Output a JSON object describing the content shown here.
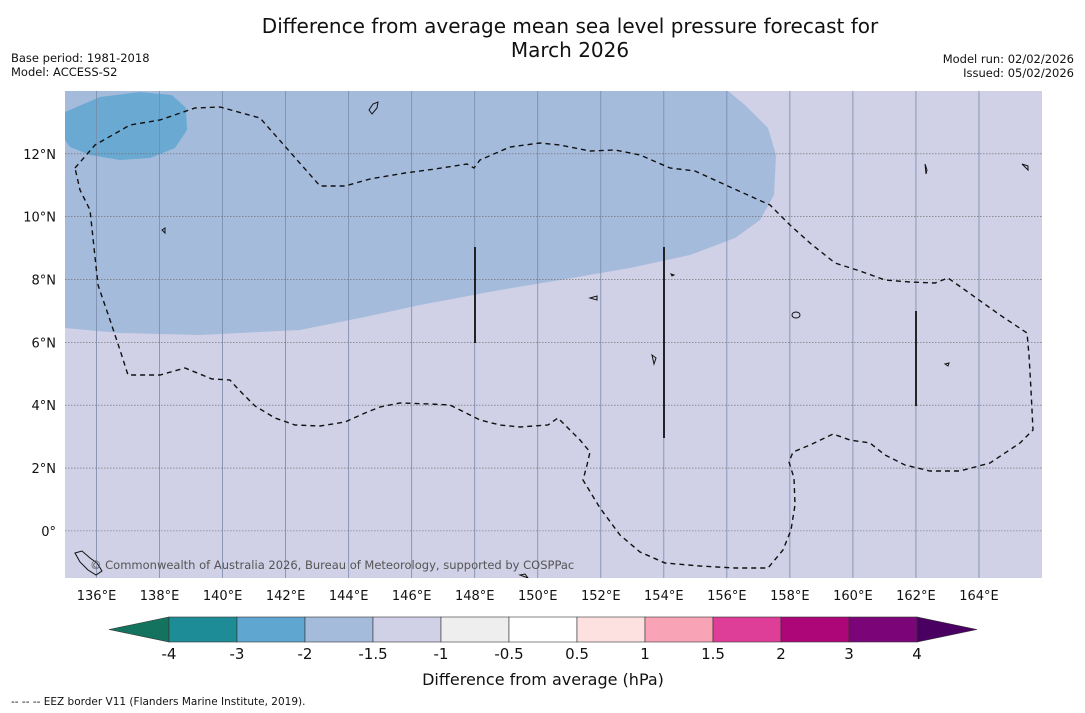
{
  "header": {
    "title_line1": "Difference from average mean sea level pressure forecast for",
    "title_line2": "March 2026",
    "base_period": "Base period: 1981-2018",
    "model": "Model: ACCESS-S2",
    "model_run": "Model run: 02/02/2026",
    "issued": "Issued: 05/02/2026"
  },
  "map": {
    "lon_ticks": [
      "136°E",
      "138°E",
      "140°E",
      "142°E",
      "144°E",
      "146°E",
      "148°E",
      "150°E",
      "152°E",
      "154°E",
      "156°E",
      "158°E",
      "160°E",
      "162°E",
      "164°E"
    ],
    "lat_ticks": [
      "12°N",
      "10°N",
      "8°N",
      "6°N",
      "4°N",
      "2°N",
      "0°"
    ],
    "lon_values": [
      136,
      138,
      140,
      142,
      144,
      146,
      148,
      150,
      152,
      154,
      156,
      158,
      160,
      162,
      164
    ],
    "lat_values": [
      12,
      10,
      8,
      6,
      4,
      2,
      0
    ],
    "copyright": "© Commonwealth of Australia 2026, Bureau of Meteorology, supported by COSPPac",
    "extent": {
      "lon_min": 135.0,
      "lon_max": 166.0,
      "lat_min": -1.5,
      "lat_max": 14.0
    }
  },
  "colorbar": {
    "tick_labels": [
      "-4",
      "-3",
      "-2",
      "-1.5",
      "-1",
      "-0.5",
      "0.5",
      "1",
      "1.5",
      "2",
      "3",
      "4"
    ],
    "colors": [
      "#1e8c96",
      "#5fa6d0",
      "#a5bbdc",
      "#d0d0e6",
      "#eeeeee",
      "#ffffff",
      "#fde0e0",
      "#f9a3b6",
      "#de3d98",
      "#ad0678",
      "#7a0478"
    ],
    "low_extend_color": "#14735f",
    "high_extend_color": "#4a0060",
    "label": "Difference from average (hPa)"
  },
  "footnote": "--  --  -- EEZ border V11 (Flanders Marine Institute, 2019)."
}
